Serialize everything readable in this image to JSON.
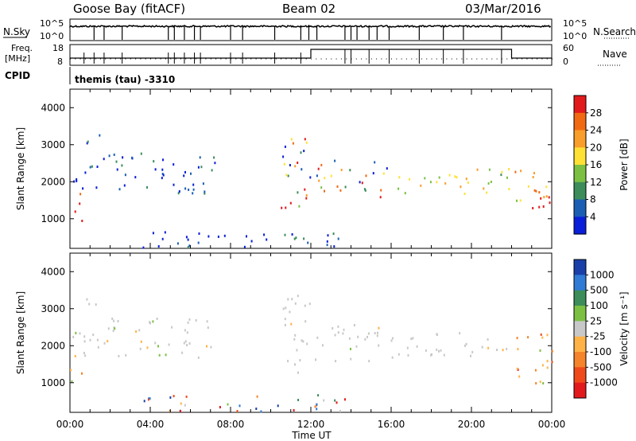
{
  "header": {
    "site": "Goose Bay (fitACF)",
    "beam": "Beam 02",
    "date": "03/Mar/2016"
  },
  "status_panels": {
    "nsky_label": "N.Sky",
    "nsky_ticks": [
      "10^5",
      "10^0"
    ],
    "nsearch_label": "N.Search",
    "nsearch_ticks": [
      "10^5",
      "10^0"
    ],
    "freq_label_1": "Freq.",
    "freq_label_2": "[MHz]",
    "freq_ticks": [
      "18",
      "8"
    ],
    "nave_label": "Nave",
    "nave_ticks": [
      "60",
      "0"
    ],
    "cpid_label": "CPID",
    "cpid_value": "themis (tau) -3310"
  },
  "chart_data": [
    {
      "type": "heatmap",
      "panel": "power",
      "ylabel": "Slant Range [km]",
      "ylim": [
        200,
        4500
      ],
      "yticks": [
        "1000",
        "2000",
        "3000",
        "4000"
      ],
      "xlim": [
        0,
        24
      ],
      "colorbar": {
        "label": "Power [dB]",
        "ticks": [
          "28",
          "24",
          "20",
          "16",
          "12",
          "8",
          "4"
        ],
        "colors": [
          "#e31a1c",
          "#f16a12",
          "#f99e2a",
          "#ffe135",
          "#7bc043",
          "#3c8d5a",
          "#1b5fb5",
          "#0a1fd9"
        ]
      },
      "regions": [
        {
          "t0": 0.0,
          "t1": 0.6,
          "r0": 800,
          "r1": 1900,
          "level": "high"
        },
        {
          "t0": 0.1,
          "t1": 7.2,
          "r0": 1700,
          "r1": 2800,
          "level": "low"
        },
        {
          "t0": 0.5,
          "t1": 1.5,
          "r0": 2900,
          "r1": 3400,
          "level": "low"
        },
        {
          "t0": 3.5,
          "t1": 14.0,
          "r0": 250,
          "r1": 700,
          "level": "low"
        },
        {
          "t0": 10.5,
          "t1": 12.2,
          "r0": 1300,
          "r1": 3400,
          "level": "mixed"
        },
        {
          "t0": 12.2,
          "t1": 16.0,
          "r0": 1600,
          "r1": 2600,
          "level": "mixed"
        },
        {
          "t0": 16.0,
          "t1": 22.0,
          "r0": 1700,
          "r1": 2400,
          "level": "mid"
        },
        {
          "t0": 22.0,
          "t1": 24.0,
          "r0": 1000,
          "r1": 2400,
          "level": "high"
        }
      ]
    },
    {
      "type": "heatmap",
      "panel": "velocity",
      "xlabel": "Time UT",
      "ylabel": "Slant Range [km]",
      "ylim": [
        200,
        4500
      ],
      "yticks": [
        "1000",
        "2000",
        "3000",
        "4000"
      ],
      "xlim": [
        0,
        24
      ],
      "xticks": [
        "00:00",
        "04:00",
        "08:00",
        "12:00",
        "16:00",
        "20:00",
        "00:00"
      ],
      "colorbar": {
        "label": "Velocity [m s⁻¹]",
        "ticks": [
          "1000",
          "500",
          "100",
          "25",
          "-25",
          "-100",
          "-500",
          "-1000"
        ],
        "colors": [
          "#1a3fa8",
          "#2f7bd6",
          "#3c8d5a",
          "#7bc043",
          "#c8c8c8",
          "#ffb347",
          "#f5842a",
          "#f04a1a",
          "#e31a1c"
        ]
      },
      "regions": [
        {
          "t0": 0.0,
          "t1": 0.6,
          "r0": 800,
          "r1": 1900,
          "level": "neg"
        },
        {
          "t0": 0.1,
          "t1": 7.2,
          "r0": 1700,
          "r1": 2800,
          "level": "ground"
        },
        {
          "t0": 0.5,
          "t1": 1.5,
          "r0": 2900,
          "r1": 3400,
          "level": "ground"
        },
        {
          "t0": 3.5,
          "t1": 14.0,
          "r0": 250,
          "r1": 700,
          "level": "mixed"
        },
        {
          "t0": 10.5,
          "t1": 12.2,
          "r0": 1300,
          "r1": 3400,
          "level": "ground"
        },
        {
          "t0": 12.2,
          "t1": 16.0,
          "r0": 1600,
          "r1": 2600,
          "level": "ground"
        },
        {
          "t0": 16.0,
          "t1": 22.0,
          "r0": 1700,
          "r1": 2400,
          "level": "ground"
        },
        {
          "t0": 22.0,
          "t1": 24.0,
          "r0": 1000,
          "r1": 2400,
          "level": "neg"
        }
      ]
    }
  ]
}
